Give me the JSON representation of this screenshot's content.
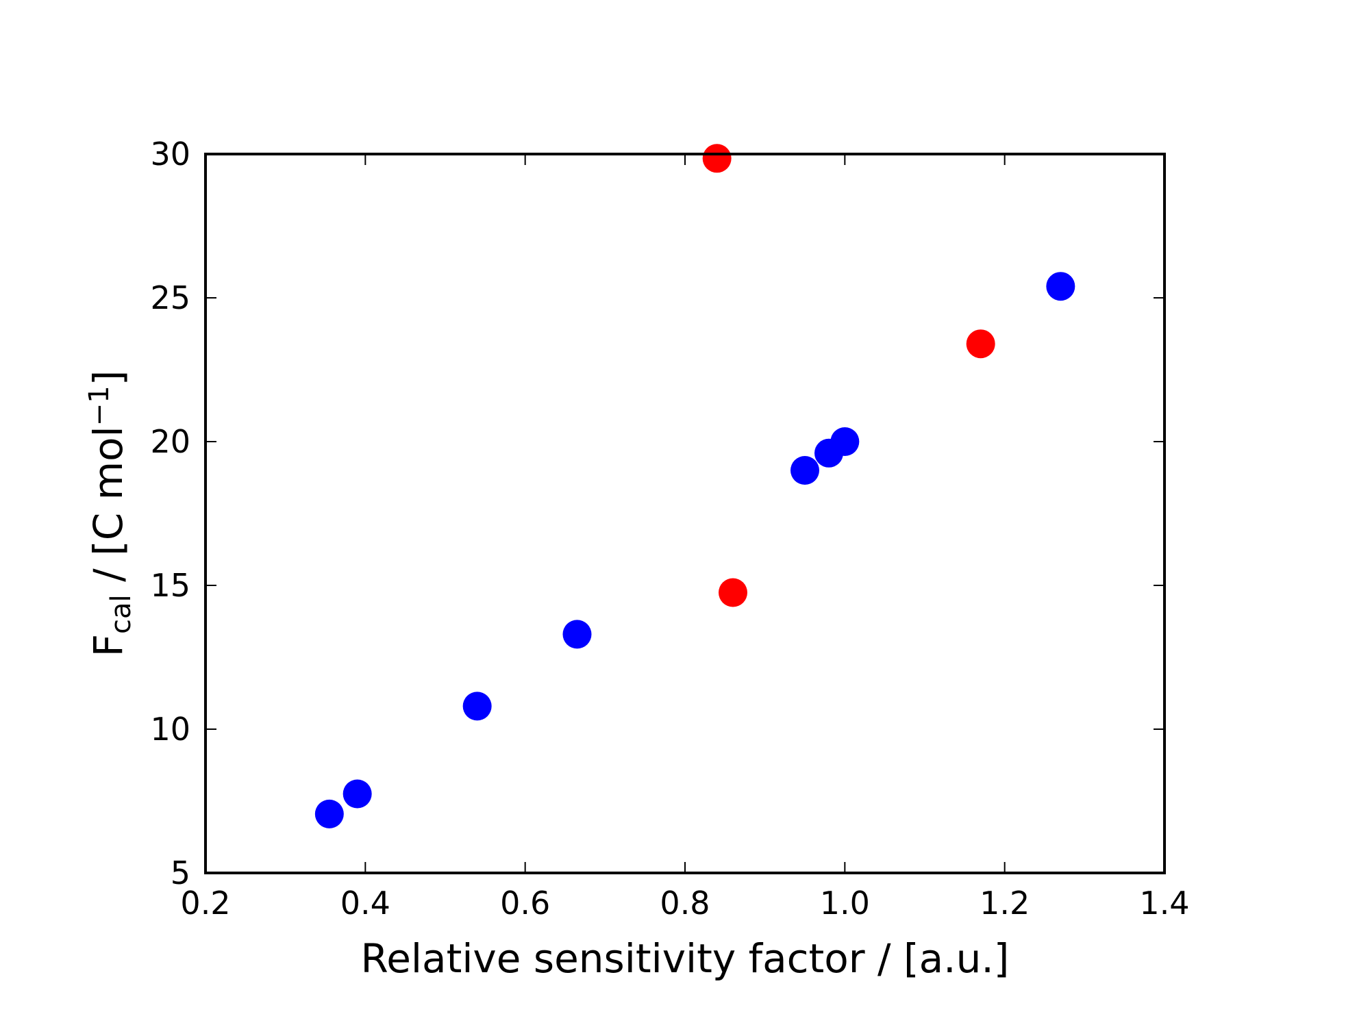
{
  "chart_data": {
    "type": "scatter",
    "title": "",
    "xlabel": "Relative sensitivity factor / [a.u.]",
    "ylabel": {
      "main": "F",
      "subscript": "cal",
      "rest": " / [C mol",
      "superscript": "−1",
      "close": "]"
    },
    "xlim": [
      0.2,
      1.4
    ],
    "ylim": [
      5,
      30
    ],
    "xticks": [
      0.2,
      0.4,
      0.6,
      0.8,
      1.0,
      1.2,
      1.4
    ],
    "xtick_labels": [
      "0.2",
      "0.4",
      "0.6",
      "0.8",
      "1.0",
      "1.2",
      "1.4"
    ],
    "yticks": [
      5,
      10,
      15,
      20,
      25,
      30
    ],
    "ytick_labels": [
      "5",
      "10",
      "15",
      "20",
      "25",
      "30"
    ],
    "grid": false,
    "series": [
      {
        "color": "#0000ff",
        "points": [
          {
            "x": 0.355,
            "y": 7.05
          },
          {
            "x": 0.39,
            "y": 7.75
          },
          {
            "x": 0.54,
            "y": 10.8
          },
          {
            "x": 0.665,
            "y": 13.3
          },
          {
            "x": 0.95,
            "y": 19.0
          },
          {
            "x": 0.98,
            "y": 19.6
          },
          {
            "x": 1.0,
            "y": 20.0
          },
          {
            "x": 1.27,
            "y": 25.4
          }
        ]
      },
      {
        "color": "#ff0000",
        "points": [
          {
            "x": 0.84,
            "y": 29.85
          },
          {
            "x": 0.86,
            "y": 14.75
          },
          {
            "x": 1.17,
            "y": 23.4
          }
        ]
      }
    ]
  }
}
